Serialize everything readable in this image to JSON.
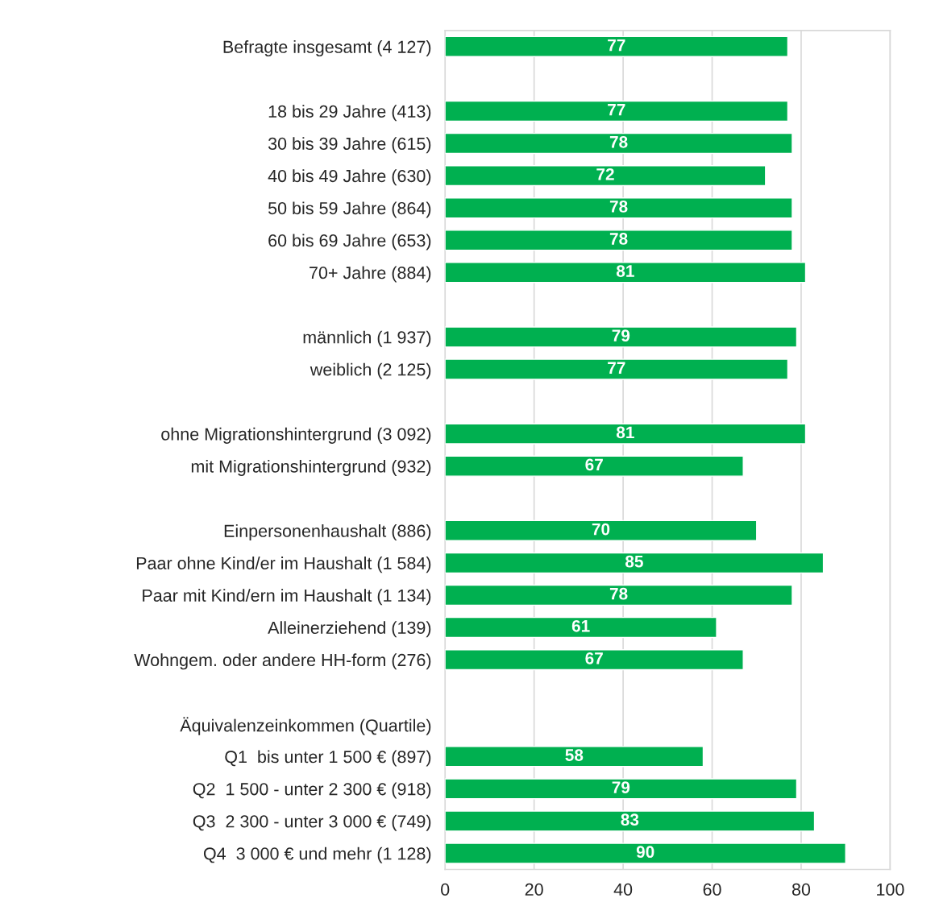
{
  "chart_data": {
    "type": "bar",
    "orientation": "horizontal",
    "categories": [
      "Befragte insgesamt (4 127)",
      null,
      "18 bis 29 Jahre (413)",
      "30 bis 39 Jahre (615)",
      "40 bis 49 Jahre (630)",
      "50 bis 59 Jahre (864)",
      "60 bis 69 Jahre (653)",
      "70+ Jahre (884)",
      null,
      "männlich (1 937)",
      "weiblich (2 125)",
      null,
      "ohne Migrationshintergrund (3 092)",
      "mit Migrationshintergrund (932)",
      null,
      "Einpersonenhaushalt (886)",
      "Paar ohne Kind/er im Haushalt (1 584)",
      "Paar mit Kind/ern im Haushalt (1 134)",
      "Alleinerziehend (139)",
      "Wohngem. oder andere HH-form (276)",
      null,
      "Äquivalenzeinkommen (Quartile)",
      "Q1  bis unter 1 500 € (897)",
      "Q2  1 500 - unter 2 300 € (918)",
      "Q3  2 300 - unter 3 000 € (749)",
      "Q4  3 000 € und mehr (1 128)"
    ],
    "values": [
      77,
      null,
      77,
      78,
      72,
      78,
      78,
      81,
      null,
      79,
      77,
      null,
      81,
      67,
      null,
      70,
      85,
      78,
      61,
      67,
      null,
      null,
      58,
      79,
      83,
      90
    ],
    "color": "#00b050",
    "xlim": [
      0,
      100
    ],
    "xticks": [
      0,
      20,
      40,
      60,
      80,
      100
    ],
    "grid": "x",
    "data_labels": true,
    "legend": false
  }
}
